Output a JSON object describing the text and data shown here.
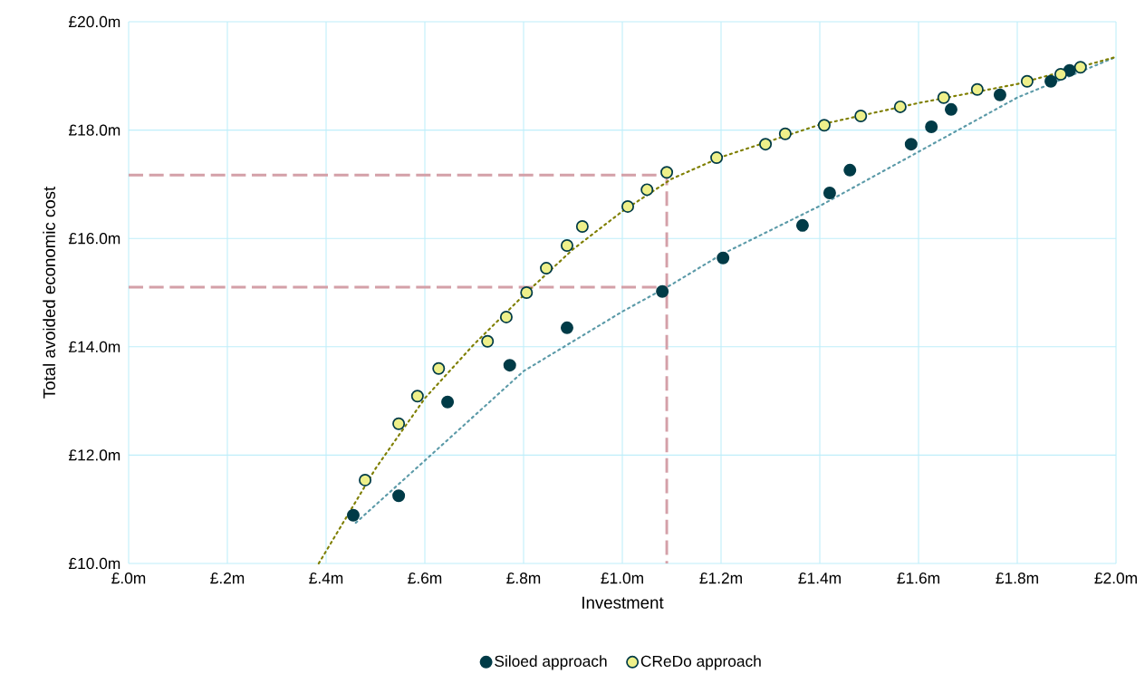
{
  "chart_data": {
    "type": "scatter",
    "xlabel": "Investment",
    "ylabel": "Total avoided economic cost",
    "xlim": [
      0,
      2
    ],
    "ylim": [
      10,
      20
    ],
    "xticks": [
      {
        "value": 0,
        "label": "£.0m"
      },
      {
        "value": 0.2,
        "label": "£.2m"
      },
      {
        "value": 0.4,
        "label": "£.4m"
      },
      {
        "value": 0.6,
        "label": "£.6m"
      },
      {
        "value": 0.8,
        "label": "£.8m"
      },
      {
        "value": 1.0,
        "label": "£1.0m"
      },
      {
        "value": 1.2,
        "label": "£1.2m"
      },
      {
        "value": 1.4,
        "label": "£1.4m"
      },
      {
        "value": 1.6,
        "label": "£1.6m"
      },
      {
        "value": 1.8,
        "label": "£1.8m"
      },
      {
        "value": 2.0,
        "label": "£2.0m"
      }
    ],
    "yticks": [
      {
        "value": 10,
        "label": "£10.0m"
      },
      {
        "value": 12,
        "label": "£12.0m"
      },
      {
        "value": 14,
        "label": "£14.0m"
      },
      {
        "value": 16,
        "label": "£16.0m"
      },
      {
        "value": 18,
        "label": "£18.0m"
      },
      {
        "value": 20,
        "label": "£20.0m"
      }
    ],
    "grid": true,
    "legend": "bottom",
    "marker": "circle",
    "series": [
      {
        "type": "line",
        "line_style": "dashed",
        "marker": "none",
        "color": "#d4a0a8",
        "x": [
          0,
          1.09,
          1.09
        ],
        "values": [
          17.17,
          17.17,
          10
        ]
      },
      {
        "type": "line",
        "line_style": "dashed",
        "marker": "none",
        "color": "#d4a0a8",
        "x": [
          0,
          1.09
        ],
        "values": [
          15.1,
          15.1
        ]
      },
      {
        "type": "line",
        "line_style": "dotted",
        "marker": "none",
        "color": "#5b9aa8",
        "x": [
          0.46,
          0.6,
          0.8,
          1.0,
          1.1,
          1.2,
          1.4,
          1.6,
          1.8,
          2.0
        ],
        "values": [
          10.75,
          11.9,
          13.55,
          14.65,
          15.15,
          15.7,
          16.6,
          17.6,
          18.6,
          19.35
        ]
      },
      {
        "type": "line",
        "line_style": "dotted",
        "marker": "none",
        "color": "#7f7f00",
        "x": [
          0.385,
          0.5,
          0.6,
          0.7,
          0.8,
          0.9,
          1.0,
          1.1,
          1.2,
          1.4,
          1.6,
          1.8,
          2.0
        ],
        "values": [
          10.0,
          11.75,
          13.05,
          14.05,
          14.95,
          15.8,
          16.5,
          17.1,
          17.5,
          18.1,
          18.5,
          18.85,
          19.35
        ]
      },
      {
        "name": "Siloed approach",
        "color": "#003b47",
        "x": [
          0.455,
          0.547,
          0.646,
          0.772,
          0.888,
          1.081,
          1.204,
          1.365,
          1.42,
          1.461,
          1.585,
          1.626,
          1.666,
          1.765,
          1.868,
          1.906
        ],
        "values": [
          10.89,
          11.25,
          12.98,
          13.66,
          14.35,
          15.02,
          15.64,
          16.24,
          16.84,
          17.26,
          17.74,
          18.06,
          18.38,
          18.65,
          18.9,
          19.1
        ]
      },
      {
        "name": "CReDo approach",
        "color": "#eef08a",
        "x": [
          0.479,
          0.547,
          0.585,
          0.628,
          0.727,
          0.765,
          0.806,
          0.846,
          0.888,
          0.919,
          1.011,
          1.05,
          1.09,
          1.191,
          1.29,
          1.33,
          1.409,
          1.483,
          1.563,
          1.651,
          1.719,
          1.82,
          1.888,
          1.928
        ],
        "values": [
          11.54,
          12.58,
          13.09,
          13.6,
          14.1,
          14.55,
          15.0,
          15.45,
          15.87,
          16.22,
          16.59,
          16.9,
          17.22,
          17.49,
          17.74,
          17.93,
          18.09,
          18.26,
          18.43,
          18.6,
          18.75,
          18.9,
          19.03,
          19.16
        ]
      }
    ]
  }
}
